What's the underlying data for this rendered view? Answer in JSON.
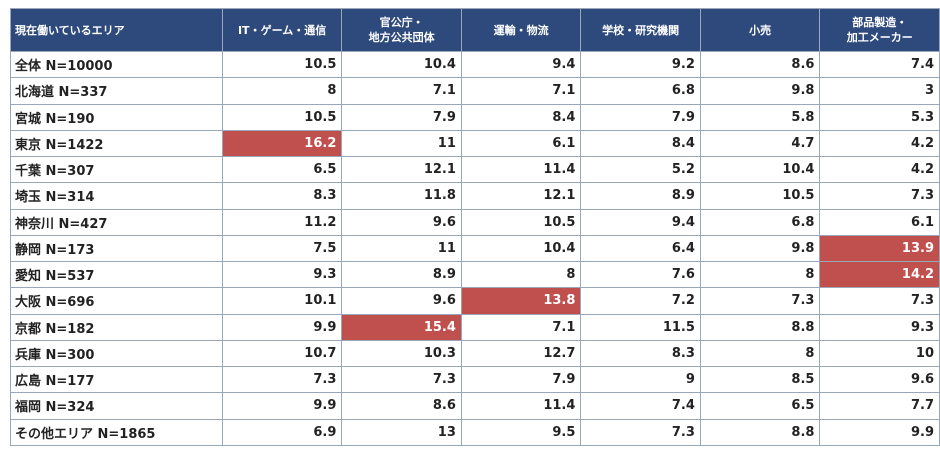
{
  "chart_data": {
    "type": "table",
    "corner_header": "現在働いているエリア",
    "columns": [
      "IT・ゲーム・通信",
      "官公庁・\n地方公共団体",
      "運輸・物流",
      "学校・研究機関",
      "小売",
      "部品製造・\n加工メーカー"
    ],
    "rows": [
      {
        "label": "全体 N=10000",
        "values": [
          "10.5",
          "10.4",
          "9.4",
          "9.2",
          "8.6",
          "7.4"
        ]
      },
      {
        "label": "北海道 N=337",
        "values": [
          "8",
          "7.1",
          "7.1",
          "6.8",
          "9.8",
          "3"
        ]
      },
      {
        "label": "宮城 N=190",
        "values": [
          "10.5",
          "7.9",
          "8.4",
          "7.9",
          "5.8",
          "5.3"
        ]
      },
      {
        "label": "東京 N=1422",
        "values": [
          "16.2",
          "11",
          "6.1",
          "8.4",
          "4.7",
          "4.2"
        ]
      },
      {
        "label": "千葉 N=307",
        "values": [
          "6.5",
          "12.1",
          "11.4",
          "5.2",
          "10.4",
          "4.2"
        ]
      },
      {
        "label": "埼玉 N=314",
        "values": [
          "8.3",
          "11.8",
          "12.1",
          "8.9",
          "10.5",
          "7.3"
        ]
      },
      {
        "label": "神奈川 N=427",
        "values": [
          "11.2",
          "9.6",
          "10.5",
          "9.4",
          "6.8",
          "6.1"
        ]
      },
      {
        "label": "静岡 N=173",
        "values": [
          "7.5",
          "11",
          "10.4",
          "6.4",
          "9.8",
          "13.9"
        ]
      },
      {
        "label": "愛知 N=537",
        "values": [
          "9.3",
          "8.9",
          "8",
          "7.6",
          "8",
          "14.2"
        ]
      },
      {
        "label": "大阪 N=696",
        "values": [
          "10.1",
          "9.6",
          "13.8",
          "7.2",
          "7.3",
          "7.3"
        ]
      },
      {
        "label": "京都 N=182",
        "values": [
          "9.9",
          "15.4",
          "7.1",
          "11.5",
          "8.8",
          "9.3"
        ]
      },
      {
        "label": "兵庫 N=300",
        "values": [
          "10.7",
          "10.3",
          "12.7",
          "8.3",
          "8",
          "10"
        ]
      },
      {
        "label": "広島 N=177",
        "values": [
          "7.3",
          "7.3",
          "7.9",
          "9",
          "8.5",
          "9.6"
        ]
      },
      {
        "label": "福岡 N=324",
        "values": [
          "9.9",
          "8.6",
          "11.4",
          "7.4",
          "6.5",
          "7.7"
        ]
      },
      {
        "label": "その他エリア N=1865",
        "values": [
          "6.9",
          "13",
          "9.5",
          "7.3",
          "8.8",
          "9.9"
        ]
      }
    ],
    "highlighted": [
      {
        "row": 3,
        "col": 0
      },
      {
        "row": 7,
        "col": 5
      },
      {
        "row": 8,
        "col": 5
      },
      {
        "row": 9,
        "col": 2
      },
      {
        "row": 10,
        "col": 1
      }
    ]
  },
  "colors": {
    "header_bg": "#2e4a7c",
    "header_text": "#ffffff",
    "highlight_bg": "#c0504d",
    "border": "#9aa7b8"
  }
}
